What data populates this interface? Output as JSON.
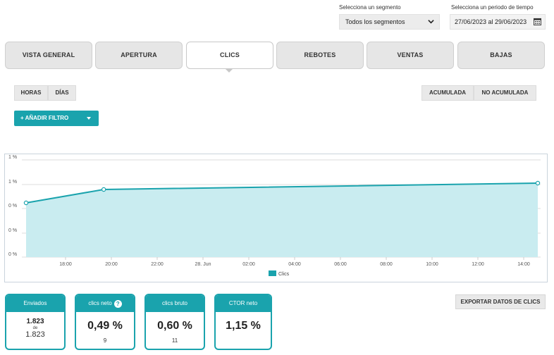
{
  "filters": {
    "segment_label": "Selecciona un segmento",
    "segment_value": "Todos los segmentos",
    "period_label": "Selecciona un periodo de tiempo",
    "period_value": "27/06/2023 al 29/06/2023"
  },
  "tabs": [
    {
      "label": "VISTA GENERAL"
    },
    {
      "label": "APERTURA"
    },
    {
      "label": "CLICS",
      "active": true
    },
    {
      "label": "REBOTES"
    },
    {
      "label": "VENTAS"
    },
    {
      "label": "BAJAS"
    }
  ],
  "granularity": {
    "hours": "HORAS",
    "days": "DÍAS"
  },
  "mode": {
    "cumulative": "ACUMULADA",
    "non_cumulative": "NO ACUMULADA"
  },
  "add_filter_label": "+ AÑADIR FILTRO",
  "chart_data": {
    "type": "area",
    "x": [
      "17:00",
      "19:40",
      "14:30"
    ],
    "series": [
      {
        "name": "Clics",
        "values": [
          0.3,
          0.4,
          0.49
        ]
      }
    ],
    "xtick_labels": [
      "18:00",
      "20:00",
      "22:00",
      "28. Jun",
      "02:00",
      "04:00",
      "06:00",
      "08:00",
      "10:00",
      "12:00",
      "14:00"
    ],
    "ytick_labels": [
      "0 %",
      "0 %",
      "0 %",
      "1 %",
      "1 %"
    ],
    "legend_placement": "bottom-center",
    "grid": true,
    "color": "#1aa3ad",
    "fill_color": "#c9ecf0"
  },
  "cards": {
    "sent": {
      "title": "Enviados",
      "value": "1.823",
      "of": "de",
      "total": "1.823"
    },
    "net_clicks": {
      "title": "clics neto",
      "value": "0,49 %",
      "count": "9"
    },
    "gross_clicks": {
      "title": "clics bruto",
      "value": "0,60 %",
      "count": "11"
    },
    "ctor": {
      "title": "CTOR neto",
      "value": "1,15 %"
    }
  },
  "export_label": "EXPORTAR DATOS DE CLICS",
  "icons": {
    "dropdown": "chevron-down-icon",
    "calendar": "calendar-icon",
    "help": "question-circle-icon"
  }
}
